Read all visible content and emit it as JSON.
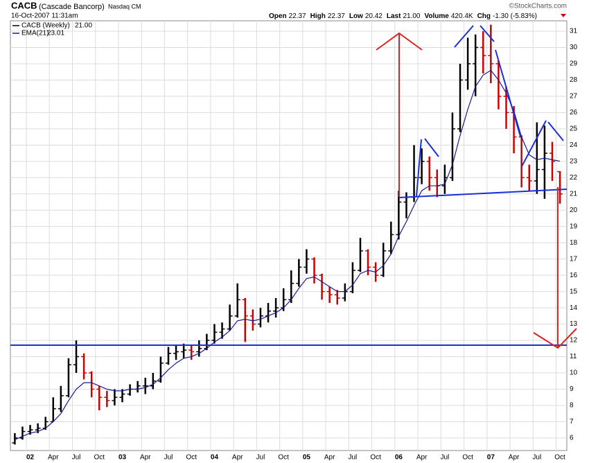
{
  "chart_data": {
    "type": "ohlc",
    "title": "CACB",
    "subtitle": "(Cascade Bancorp)",
    "exchange": "Nasdaq CM",
    "date": "16-Oct-2007 11:31am",
    "credit": "©StockCharts.com",
    "quote": [
      {
        "label": "Open",
        "value": "22.37"
      },
      {
        "label": "High",
        "value": "22.37"
      },
      {
        "label": "Low",
        "value": "20.42"
      },
      {
        "label": "Last",
        "value": "21.00"
      },
      {
        "label": "Volume",
        "value": "420.4K"
      },
      {
        "label": "Chg",
        "value": "-1.30 (-5.83%)"
      }
    ],
    "x": [
      "2001-11",
      "2001-12",
      "2002-01",
      "2002-02",
      "2002-03",
      "2002-04",
      "2002-05",
      "2002-06",
      "2002-07",
      "2002-08",
      "2002-09",
      "2002-10",
      "2002-11",
      "2002-12",
      "2003-01",
      "2003-02",
      "2003-03",
      "2003-04",
      "2003-05",
      "2003-06",
      "2003-07",
      "2003-08",
      "2003-09",
      "2003-10",
      "2003-11",
      "2003-12",
      "2004-01",
      "2004-02",
      "2004-03",
      "2004-04",
      "2004-05",
      "2004-06",
      "2004-07",
      "2004-08",
      "2004-09",
      "2004-10",
      "2004-11",
      "2004-12",
      "2005-01",
      "2005-02",
      "2005-03",
      "2005-04",
      "2005-05",
      "2005-06",
      "2005-07",
      "2005-08",
      "2005-09",
      "2005-10",
      "2005-11",
      "2005-12",
      "2006-01",
      "2006-02",
      "2006-03",
      "2006-04",
      "2006-05",
      "2006-06",
      "2006-07",
      "2006-08",
      "2006-09",
      "2006-10",
      "2006-11",
      "2006-12",
      "2007-01",
      "2007-02",
      "2007-03",
      "2007-04",
      "2007-05",
      "2007-06",
      "2007-07",
      "2007-08",
      "2007-09",
      "2007-10"
    ],
    "series": [
      {
        "name": "CACB (Weekly)",
        "legend_value": "21.00",
        "up_color": "#000000",
        "down_color": "#cc0000",
        "open": [
          5.7,
          6.0,
          6.4,
          6.5,
          6.6,
          7.0,
          7.8,
          8.6,
          10.5,
          11.0,
          10.0,
          9.0,
          8.5,
          8.3,
          8.5,
          8.7,
          9.0,
          9.2,
          9.2,
          9.5,
          10.6,
          11.2,
          11.3,
          11.4,
          11.3,
          11.5,
          12.0,
          12.5,
          12.7,
          13.5,
          14.5,
          13.5,
          13.0,
          13.5,
          13.8,
          14.0,
          14.5,
          15.5,
          16.5,
          17.0,
          16.0,
          15.0,
          14.8,
          14.6,
          15.0,
          16.3,
          17.5,
          16.5,
          16.0,
          17.5,
          18.5,
          20.5,
          20.8,
          22.0,
          23.0,
          22.0,
          21.5,
          22.0,
          25.0,
          28.0,
          29.0,
          30.0,
          29.5,
          29.0,
          27.0,
          26.0,
          24.5,
          22.0,
          21.8,
          22.5,
          23.5,
          22.37
        ],
        "high": [
          6.3,
          6.7,
          6.8,
          6.9,
          7.3,
          8.5,
          9.2,
          10.9,
          12.0,
          11.2,
          10.1,
          9.2,
          8.9,
          9.0,
          9.0,
          9.3,
          9.5,
          9.7,
          10.0,
          11.0,
          11.6,
          11.7,
          11.8,
          11.7,
          12.0,
          12.4,
          13.0,
          13.1,
          14.2,
          15.5,
          14.6,
          13.9,
          14.0,
          14.3,
          14.6,
          15.2,
          16.3,
          17.0,
          17.6,
          17.1,
          16.1,
          15.3,
          15.1,
          15.5,
          16.8,
          18.3,
          17.6,
          16.8,
          18.0,
          19.3,
          21.2,
          21.1,
          24.0,
          23.8,
          23.3,
          22.5,
          22.8,
          26.0,
          29.0,
          30.6,
          30.8,
          31.0,
          31.4,
          29.2,
          27.6,
          26.4,
          24.6,
          22.8,
          25.4,
          25.2,
          24.2,
          22.4
        ],
        "low": [
          5.6,
          5.9,
          6.2,
          6.3,
          6.5,
          7.0,
          7.6,
          8.5,
          10.0,
          9.6,
          8.5,
          7.7,
          7.9,
          8.0,
          8.2,
          8.6,
          8.8,
          8.7,
          9.0,
          9.4,
          10.5,
          10.8,
          10.9,
          10.8,
          11.0,
          11.4,
          11.8,
          12.1,
          12.6,
          13.4,
          11.9,
          12.6,
          12.8,
          13.1,
          13.4,
          13.8,
          14.3,
          15.3,
          16.1,
          15.5,
          14.5,
          14.3,
          14.2,
          14.4,
          14.9,
          16.2,
          16.0,
          15.6,
          15.9,
          17.3,
          18.2,
          19.5,
          20.5,
          21.6,
          21.2,
          20.8,
          21.0,
          21.8,
          24.8,
          27.4,
          27.0,
          28.4,
          27.8,
          26.2,
          25.0,
          23.5,
          21.4,
          21.2,
          21.0,
          20.7,
          21.8,
          20.4
        ],
        "close": [
          6.0,
          6.4,
          6.5,
          6.6,
          7.0,
          7.8,
          8.6,
          10.5,
          11.0,
          10.0,
          9.0,
          8.5,
          8.3,
          8.5,
          8.7,
          9.0,
          9.2,
          9.2,
          9.5,
          10.6,
          11.2,
          11.3,
          11.4,
          11.3,
          11.5,
          12.0,
          12.5,
          12.7,
          13.5,
          14.5,
          13.5,
          13.0,
          13.5,
          13.8,
          14.0,
          14.5,
          15.5,
          16.5,
          17.0,
          16.0,
          15.0,
          14.8,
          14.6,
          15.0,
          16.3,
          17.5,
          16.5,
          16.0,
          17.5,
          18.5,
          20.5,
          20.8,
          22.0,
          23.0,
          22.0,
          21.5,
          22.0,
          25.0,
          28.0,
          29.0,
          30.0,
          29.5,
          29.0,
          27.0,
          26.0,
          24.5,
          22.0,
          21.8,
          22.5,
          23.5,
          23.0,
          21.0
        ]
      },
      {
        "name": "EMA(21)",
        "legend_value": "23.01",
        "color": "#1a1a8c",
        "values": [
          5.9,
          6.1,
          6.3,
          6.4,
          6.6,
          7.0,
          7.5,
          8.3,
          9.0,
          9.4,
          9.4,
          9.2,
          9.0,
          8.9,
          8.9,
          9.0,
          9.0,
          9.1,
          9.3,
          9.7,
          10.2,
          10.6,
          10.9,
          11.0,
          11.2,
          11.5,
          11.9,
          12.2,
          12.6,
          13.2,
          13.3,
          13.2,
          13.3,
          13.5,
          13.7,
          14.0,
          14.5,
          15.2,
          15.8,
          15.9,
          15.6,
          15.3,
          15.0,
          15.0,
          15.4,
          16.1,
          16.3,
          16.2,
          16.6,
          17.3,
          18.4,
          19.3,
          20.3,
          21.2,
          21.5,
          21.5,
          21.6,
          22.8,
          24.6,
          26.2,
          27.6,
          28.3,
          28.6,
          28.0,
          27.2,
          26.1,
          24.5,
          23.4,
          23.1,
          23.2,
          23.1,
          23.01
        ]
      }
    ],
    "ylim": [
      5.23,
      31.64
    ],
    "yticks": [
      6,
      7,
      8,
      9,
      10,
      11,
      12,
      13,
      14,
      15,
      16,
      17,
      18,
      19,
      20,
      21,
      22,
      23,
      24,
      25,
      26,
      27,
      28,
      29,
      30,
      31
    ],
    "xticks": [
      {
        "value": "2002-01",
        "label": "02"
      },
      {
        "value": "2002-04",
        "label": "Apr"
      },
      {
        "value": "2002-07",
        "label": "Jul"
      },
      {
        "value": "2002-10",
        "label": "Oct"
      },
      {
        "value": "2003-01",
        "label": "03"
      },
      {
        "value": "2003-04",
        "label": "Apr"
      },
      {
        "value": "2003-07",
        "label": "Jul"
      },
      {
        "value": "2003-10",
        "label": "Oct"
      },
      {
        "value": "2004-01",
        "label": "04"
      },
      {
        "value": "2004-04",
        "label": "Apr"
      },
      {
        "value": "2004-07",
        "label": "Jul"
      },
      {
        "value": "2004-10",
        "label": "Oct"
      },
      {
        "value": "2005-01",
        "label": "05"
      },
      {
        "value": "2005-04",
        "label": "Apr"
      },
      {
        "value": "2005-07",
        "label": "Jul"
      },
      {
        "value": "2005-10",
        "label": "Oct"
      },
      {
        "value": "2006-01",
        "label": "06"
      },
      {
        "value": "2006-04",
        "label": "Apr"
      },
      {
        "value": "2006-07",
        "label": "Jul"
      },
      {
        "value": "2006-10",
        "label": "Oct"
      },
      {
        "value": "2007-01",
        "label": "07"
      },
      {
        "value": "2007-04",
        "label": "Apr"
      },
      {
        "value": "2007-07",
        "label": "Jul"
      },
      {
        "value": "2007-10",
        "label": "Oct"
      }
    ],
    "grid": true
  }
}
